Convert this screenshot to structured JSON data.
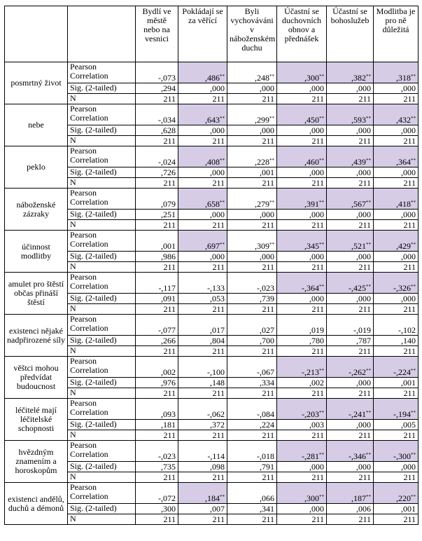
{
  "table": {
    "header": [
      "Bydlí ve městě nebo na vesnici",
      "Pokládají se za věřící",
      "Byli vychováváni v náboženském duchu",
      "Účastní se duchovních obnov a přednášek",
      "Účastní se bohoslužeb",
      "Modlitba je pro ně důležitá"
    ],
    "stat_labels": [
      "Pearson Correlation",
      "Sig. (2-tailed)",
      "N"
    ],
    "rows": [
      {
        "label": "posmrtný život",
        "pearson": [
          {
            "value": "-,073"
          },
          {
            "value": ",486",
            "sig": "**",
            "highlight": true
          },
          {
            "value": ",248",
            "sig": "**"
          },
          {
            "value": ",300",
            "sig": "**",
            "highlight": true
          },
          {
            "value": ",382",
            "sig": "**",
            "highlight": true
          },
          {
            "value": ",318",
            "sig": "**",
            "highlight": true
          }
        ],
        "sig": [
          ",294",
          ",000",
          ",000",
          ",000",
          ",000",
          ",000"
        ],
        "n": [
          "211",
          "211",
          "211",
          "211",
          "211",
          "211"
        ]
      },
      {
        "label": "nebe",
        "pearson": [
          {
            "value": "-,034"
          },
          {
            "value": ",643",
            "sig": "**",
            "highlight": true
          },
          {
            "value": ",299",
            "sig": "**"
          },
          {
            "value": ",450",
            "sig": "**",
            "highlight": true
          },
          {
            "value": ",593",
            "sig": "**",
            "highlight": true
          },
          {
            "value": ",432",
            "sig": "**",
            "highlight": true
          }
        ],
        "sig": [
          ",628",
          ",000",
          ",000",
          ",000",
          ",000",
          ",000"
        ],
        "n": [
          "211",
          "211",
          "211",
          "211",
          "211",
          "211"
        ]
      },
      {
        "label": "peklo",
        "pearson": [
          {
            "value": "-,024"
          },
          {
            "value": ",408",
            "sig": "**",
            "highlight": true
          },
          {
            "value": ",228",
            "sig": "**"
          },
          {
            "value": ",460",
            "sig": "**",
            "highlight": true
          },
          {
            "value": ",439",
            "sig": "**",
            "highlight": true
          },
          {
            "value": ",364",
            "sig": "**",
            "highlight": true
          }
        ],
        "sig": [
          ",726",
          ",000",
          ",001",
          ",000",
          ",000",
          ",000"
        ],
        "n": [
          "211",
          "211",
          "211",
          "211",
          "211",
          "211"
        ]
      },
      {
        "label": "náboženské zázraky",
        "pearson": [
          {
            "value": ",079"
          },
          {
            "value": ",658",
            "sig": "**",
            "highlight": true
          },
          {
            "value": ",279",
            "sig": "**"
          },
          {
            "value": ",391",
            "sig": "**",
            "highlight": true
          },
          {
            "value": ",567",
            "sig": "**",
            "highlight": true
          },
          {
            "value": ",418",
            "sig": "**",
            "highlight": true
          }
        ],
        "sig": [
          ",251",
          ",000",
          ",000",
          ",000",
          ",000",
          ",000"
        ],
        "n": [
          "211",
          "211",
          "211",
          "211",
          "211",
          "211"
        ]
      },
      {
        "label": "účinnost modlitby",
        "pearson": [
          {
            "value": ",001"
          },
          {
            "value": ",697",
            "sig": "**",
            "highlight": true
          },
          {
            "value": ",309",
            "sig": "**"
          },
          {
            "value": ",345",
            "sig": "**",
            "highlight": true
          },
          {
            "value": ",521",
            "sig": "**",
            "highlight": true
          },
          {
            "value": ",429",
            "sig": "**",
            "highlight": true
          }
        ],
        "sig": [
          ",986",
          ",000",
          ",000",
          ",000",
          ",000",
          ",000"
        ],
        "n": [
          "211",
          "211",
          "211",
          "211",
          "211",
          "211"
        ]
      },
      {
        "label": "amulet pro štěstí občas přináší štěstí",
        "pearson": [
          {
            "value": "-,117"
          },
          {
            "value": "-,133"
          },
          {
            "value": "-,023"
          },
          {
            "value": "-,364",
            "sig": "**",
            "highlight": true
          },
          {
            "value": "-,425",
            "sig": "**",
            "highlight": true
          },
          {
            "value": "-,326",
            "sig": "**",
            "highlight": true
          }
        ],
        "sig": [
          ",091",
          ",053",
          ",739",
          ",000",
          ",000",
          ",000"
        ],
        "n": [
          "211",
          "211",
          "211",
          "211",
          "211",
          "211"
        ]
      },
      {
        "label": "existenci nějaké nadpřirozené síly",
        "pearson": [
          {
            "value": "-,077"
          },
          {
            "value": ",017"
          },
          {
            "value": ",027"
          },
          {
            "value": ",019"
          },
          {
            "value": "-,019"
          },
          {
            "value": "-,102"
          }
        ],
        "sig": [
          ",266",
          ",804",
          ",700",
          ",780",
          ",787",
          ",140"
        ],
        "n": [
          "211",
          "211",
          "211",
          "211",
          "211",
          "211"
        ]
      },
      {
        "label": "věštci mohou předvídat budoucnost",
        "pearson": [
          {
            "value": ",002"
          },
          {
            "value": "-,100"
          },
          {
            "value": "-,067"
          },
          {
            "value": "-,213",
            "sig": "**",
            "highlight": true
          },
          {
            "value": "-,262",
            "sig": "**",
            "highlight": true
          },
          {
            "value": "-,224",
            "sig": "**",
            "highlight": true
          }
        ],
        "sig": [
          ",976",
          ",148",
          ",334",
          ",002",
          ",000",
          ",001"
        ],
        "n": [
          "211",
          "211",
          "211",
          "211",
          "211",
          "211"
        ]
      },
      {
        "label": "léčitelé mají léčitelské schopnosti",
        "pearson": [
          {
            "value": ",093"
          },
          {
            "value": "-,062"
          },
          {
            "value": "-,084"
          },
          {
            "value": "-,203",
            "sig": "**",
            "highlight": true
          },
          {
            "value": "-,241",
            "sig": "**",
            "highlight": true
          },
          {
            "value": "-,194",
            "sig": "**",
            "highlight": true
          }
        ],
        "sig": [
          ",181",
          ",372",
          ",224",
          ",003",
          ",000",
          ",005"
        ],
        "n": [
          "211",
          "211",
          "211",
          "211",
          "211",
          "211"
        ]
      },
      {
        "label": "hvězdným znamením a horoskopům",
        "pearson": [
          {
            "value": "-,023"
          },
          {
            "value": "-,114"
          },
          {
            "value": "-,018"
          },
          {
            "value": "-,281",
            "sig": "**",
            "highlight": true
          },
          {
            "value": "-,346",
            "sig": "**",
            "highlight": true
          },
          {
            "value": "-,300",
            "sig": "**",
            "highlight": true
          }
        ],
        "sig": [
          ",735",
          ",098",
          ",791",
          ",000",
          ",000",
          ",000"
        ],
        "n": [
          "211",
          "211",
          "211",
          "211",
          "211",
          "211"
        ]
      },
      {
        "label": "existenci andělů, duchů a démonů",
        "pearson": [
          {
            "value": "-,072"
          },
          {
            "value": ",184",
            "sig": "**",
            "highlight": true
          },
          {
            "value": ",066"
          },
          {
            "value": ",300",
            "sig": "**",
            "highlight": true
          },
          {
            "value": ",187",
            "sig": "**",
            "highlight": true
          },
          {
            "value": ",220",
            "sig": "**",
            "highlight": true
          }
        ],
        "sig": [
          ",300",
          ",007",
          ",341",
          ",000",
          ",006",
          ",001"
        ],
        "n": [
          "211",
          "211",
          "211",
          "211",
          "211",
          "211"
        ]
      }
    ]
  }
}
